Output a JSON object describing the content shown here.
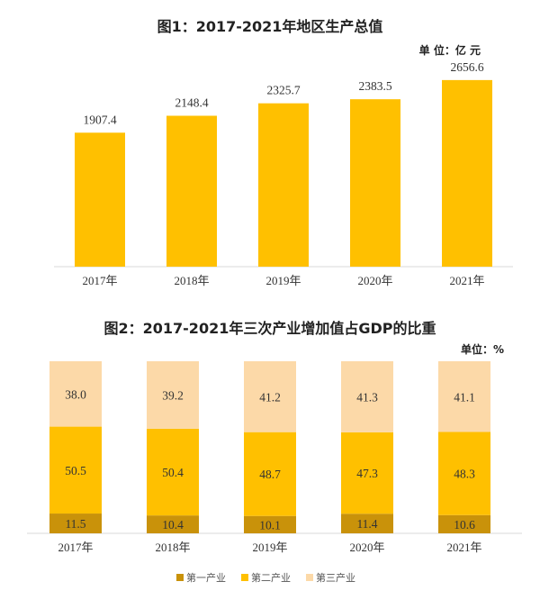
{
  "chart_data": [
    {
      "type": "bar",
      "title": "图1：2017-2021年地区生产总值",
      "unit": "单 位：亿 元",
      "categories": [
        "2017年",
        "2018年",
        "2019年",
        "2020年",
        "2021年"
      ],
      "values": [
        1907.4,
        2148.4,
        2325.7,
        2383.5,
        2656.6
      ],
      "ylim": [
        0,
        2950
      ],
      "grid": false,
      "bar_color": "#FFC000"
    },
    {
      "type": "bar",
      "stacked": true,
      "title": "图2：2017-2021年三次产业增加值占GDP的比重",
      "unit": "单位：%",
      "categories": [
        "2017年",
        "2018年",
        "2019年",
        "2020年",
        "2021年"
      ],
      "series": [
        {
          "name": "第一产业",
          "values": [
            11.5,
            10.4,
            10.1,
            11.4,
            10.6
          ],
          "color": "#C9920A"
        },
        {
          "name": "第二产业",
          "values": [
            50.5,
            50.4,
            48.7,
            47.3,
            48.3
          ],
          "color": "#FFC000"
        },
        {
          "name": "第三产业",
          "values": [
            38.0,
            39.2,
            41.2,
            41.3,
            41.1
          ],
          "color": "#FCD9A8"
        }
      ],
      "ylim": [
        0,
        100
      ],
      "legend": "bottom"
    }
  ]
}
